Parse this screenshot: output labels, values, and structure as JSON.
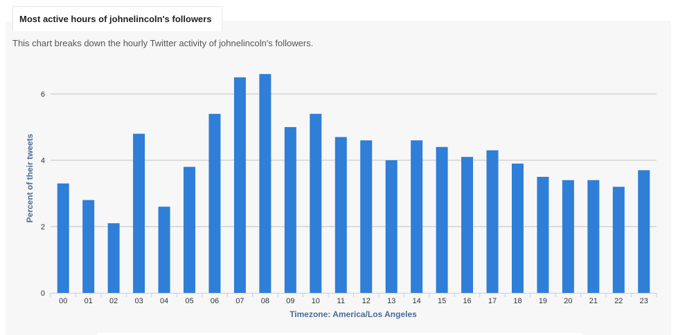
{
  "header": {
    "title": "Most active hours of johnelincoln's followers",
    "subtitle": "This chart breaks down the hourly Twitter activity of johnelincoln's followers."
  },
  "colors": {
    "bar": "#2f7ed8",
    "grid": "#c0c0c0",
    "axis_title": "#4b6b95",
    "panel_bg": "#f7f7f7"
  },
  "chart_data": {
    "type": "bar",
    "title": "",
    "xlabel": "Timezone: America/Los Angeles",
    "ylabel": "Percent of their tweets",
    "categories": [
      "00",
      "01",
      "02",
      "03",
      "04",
      "05",
      "06",
      "07",
      "08",
      "09",
      "10",
      "11",
      "12",
      "13",
      "14",
      "15",
      "16",
      "17",
      "18",
      "19",
      "20",
      "21",
      "22",
      "23"
    ],
    "values": [
      3.3,
      2.8,
      2.1,
      4.8,
      2.6,
      3.8,
      5.4,
      6.5,
      6.6,
      5.0,
      5.4,
      4.7,
      4.6,
      4.0,
      4.6,
      4.4,
      4.1,
      4.3,
      3.9,
      3.5,
      3.4,
      3.4,
      3.2,
      3.7
    ],
    "ylim": [
      0,
      7
    ],
    "yticks": [
      0,
      2,
      4,
      6
    ],
    "grid": true,
    "legend": "none"
  }
}
